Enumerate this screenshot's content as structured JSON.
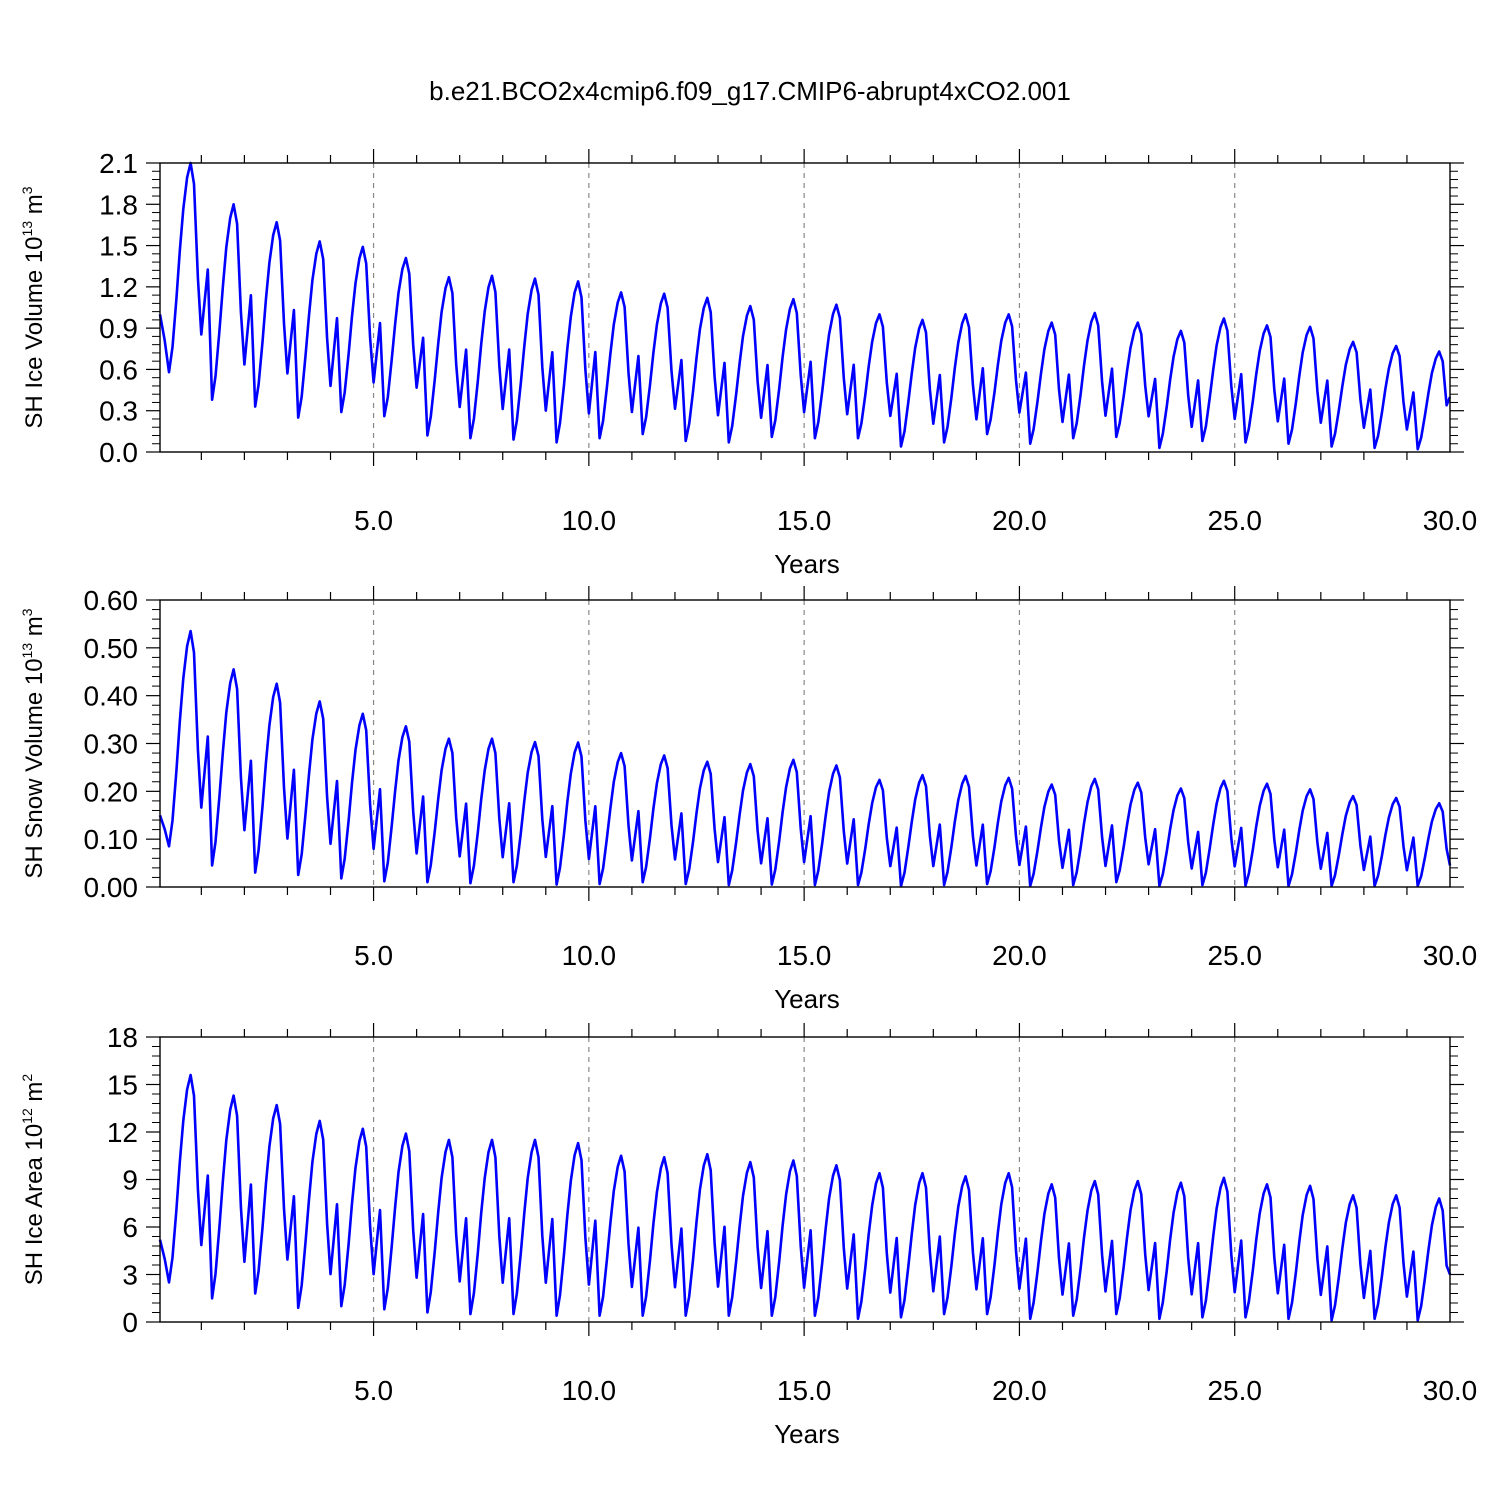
{
  "title": "b.e21.BCO2x4cmip6.f09_g17.CMIP6-abrupt4xCO2.001",
  "line_color": "#0000ff",
  "grid_color": "#888888",
  "chart_data": [
    {
      "type": "line",
      "id": "ice-volume",
      "ylabel": {
        "main": "SH Ice Volume 10",
        "exp": "13",
        "unit": " m",
        "unit_exp": "3"
      },
      "xlabel": "Years",
      "xlim": [
        0.04,
        30
      ],
      "ylim": [
        0,
        2.1
      ],
      "xticks": [
        "5.0",
        "10.0",
        "15.0",
        "20.0",
        "25.0",
        "30.0"
      ],
      "yticks": [
        "0.0",
        "0.3",
        "0.6",
        "0.9",
        "1.2",
        "1.5",
        "1.8",
        "2.1"
      ],
      "ytick_values": [
        0,
        0.3,
        0.6,
        0.9,
        1.2,
        1.5,
        1.8,
        2.1
      ],
      "grid": "vertical dashed",
      "series": [
        {
          "maxima": [
            2.1,
            1.8,
            1.67,
            1.53,
            1.49,
            1.41,
            1.27,
            1.28,
            1.26,
            1.24,
            1.16,
            1.15,
            1.12,
            1.06,
            1.11,
            1.07,
            1.0,
            0.96,
            1.0,
            1.0,
            0.94,
            1.01,
            0.94,
            0.88,
            0.97,
            0.92,
            0.91,
            0.8,
            0.77,
            0.73
          ],
          "minima": [
            0.58,
            0.38,
            0.33,
            0.25,
            0.29,
            0.26,
            0.12,
            0.1,
            0.09,
            0.07,
            0.1,
            0.13,
            0.08,
            0.07,
            0.11,
            0.1,
            0.1,
            0.04,
            0.07,
            0.13,
            0.06,
            0.1,
            0.11,
            0.03,
            0.08,
            0.07,
            0.06,
            0.04,
            0.03,
            0.02
          ],
          "start": 1.0,
          "end": 0.4
        }
      ]
    },
    {
      "type": "line",
      "id": "snow-volume",
      "ylabel": {
        "main": "SH Snow Volume 10",
        "exp": "13",
        "unit": " m",
        "unit_exp": "3"
      },
      "xlabel": "Years",
      "xlim": [
        0.04,
        30
      ],
      "ylim": [
        0,
        0.6
      ],
      "xticks": [
        "5.0",
        "10.0",
        "15.0",
        "20.0",
        "25.0",
        "30.0"
      ],
      "yticks": [
        "0.00",
        "0.10",
        "0.20",
        "0.30",
        "0.40",
        "0.50",
        "0.60"
      ],
      "ytick_values": [
        0,
        0.1,
        0.2,
        0.3,
        0.4,
        0.5,
        0.6
      ],
      "grid": "vertical dashed",
      "series": [
        {
          "maxima": [
            0.535,
            0.455,
            0.425,
            0.388,
            0.362,
            0.336,
            0.31,
            0.31,
            0.303,
            0.302,
            0.28,
            0.275,
            0.262,
            0.257,
            0.266,
            0.254,
            0.224,
            0.234,
            0.232,
            0.228,
            0.214,
            0.226,
            0.218,
            0.206,
            0.222,
            0.216,
            0.204,
            0.19,
            0.186,
            0.175
          ],
          "minima": [
            0.085,
            0.045,
            0.03,
            0.025,
            0.018,
            0.012,
            0.01,
            0.008,
            0.01,
            0.005,
            0.006,
            0.01,
            0.006,
            0.004,
            0.005,
            0.004,
            0.004,
            0.002,
            0.004,
            0.006,
            0.002,
            0.004,
            0.01,
            0.002,
            0.004,
            0.003,
            0.002,
            0.002,
            0.002,
            0.002
          ],
          "start": 0.15,
          "end": 0.045
        }
      ]
    },
    {
      "type": "line",
      "id": "ice-area",
      "ylabel": {
        "main": "SH Ice Area 10",
        "exp": "12",
        "unit": " m",
        "unit_exp": "2"
      },
      "xlabel": "Years",
      "xlim": [
        0.04,
        30
      ],
      "ylim": [
        0,
        18
      ],
      "xticks": [
        "5.0",
        "10.0",
        "15.0",
        "20.0",
        "25.0",
        "30.0"
      ],
      "yticks": [
        "0",
        "3",
        "6",
        "9",
        "12",
        "15",
        "18"
      ],
      "ytick_values": [
        0,
        3,
        6,
        9,
        12,
        15,
        18
      ],
      "grid": "vertical dashed",
      "series": [
        {
          "maxima": [
            15.6,
            14.3,
            13.7,
            12.7,
            12.2,
            11.9,
            11.5,
            11.5,
            11.5,
            11.3,
            10.5,
            10.4,
            10.6,
            10.1,
            10.2,
            9.9,
            9.4,
            9.4,
            9.2,
            9.4,
            8.7,
            8.9,
            8.9,
            8.8,
            9.1,
            8.7,
            8.6,
            8.0,
            8.0,
            7.8
          ],
          "minima": [
            2.5,
            1.5,
            1.8,
            0.9,
            1.0,
            0.8,
            0.6,
            0.5,
            0.5,
            0.4,
            0.4,
            0.4,
            0.4,
            0.4,
            0.4,
            0.4,
            0.2,
            0.3,
            0.5,
            0.5,
            0.2,
            0.4,
            0.5,
            0.2,
            0.3,
            0.3,
            0.2,
            0.1,
            0.2,
            0.1
          ],
          "start": 5.2,
          "end": 3.0
        }
      ]
    }
  ]
}
